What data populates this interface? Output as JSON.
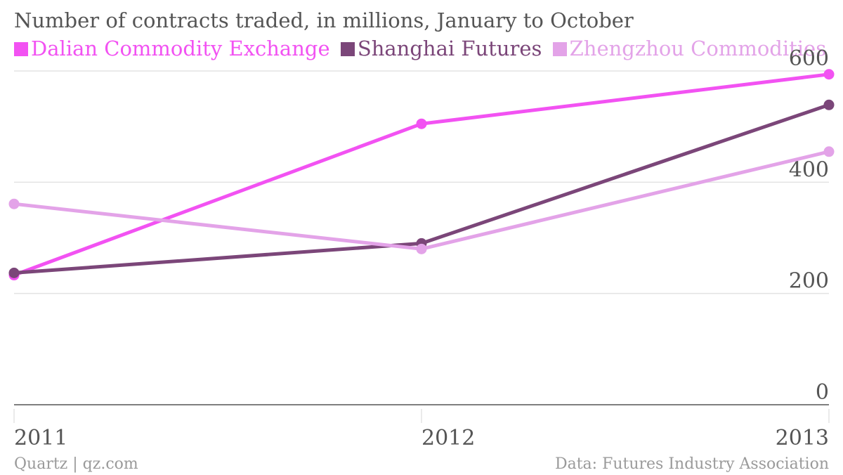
{
  "colors": {
    "dalian": "#f252f2",
    "shanghai": "#7b4679",
    "zhengzhou": "#e3a3e8",
    "grid": "#e3e3e3",
    "axis": "#555555"
  },
  "chart_data": {
    "type": "line",
    "title": "Number of contracts traded, in millions, January to October",
    "x": [
      "2011",
      "2012",
      "2013"
    ],
    "series": [
      {
        "name": "Dalian Commodity Exchange",
        "color": "#f252f2",
        "values": [
          233,
          505,
          594
        ]
      },
      {
        "name": "Shanghai Futures",
        "color": "#7b4679",
        "values": [
          237,
          290,
          539
        ]
      },
      {
        "name": "Zhengzhou Commodities",
        "color": "#e3a3e8",
        "values": [
          361,
          280,
          455
        ]
      }
    ],
    "ylim": [
      0,
      600
    ],
    "yticks": [
      "0",
      "200",
      "400",
      "600"
    ],
    "y_axis_position": "right",
    "grid": true,
    "legend_position": "top-left"
  },
  "footer": {
    "source_left": "Quartz | qz.com",
    "source_right": "Data: Futures Industry Association"
  }
}
